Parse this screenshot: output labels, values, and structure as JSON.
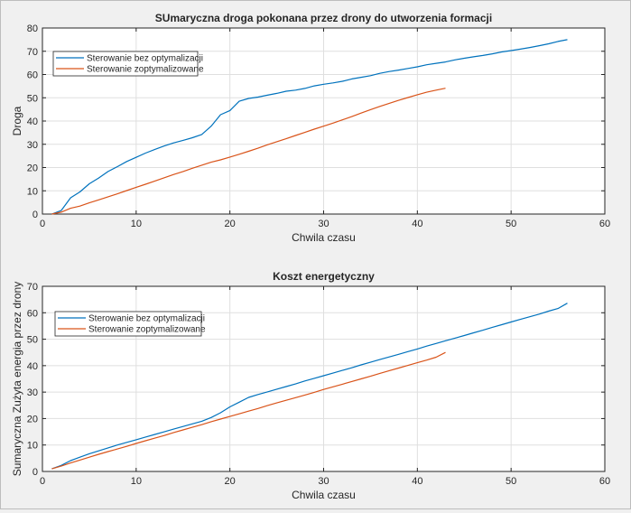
{
  "chart_data": [
    {
      "type": "line",
      "title": "SUmaryczna droga pokonana przez drony do utworzenia formacji",
      "xlabel": "Chwila czasu",
      "ylabel": "Droga",
      "xlim": [
        0,
        60
      ],
      "ylim": [
        0,
        80
      ],
      "xticks": [
        0,
        10,
        20,
        30,
        40,
        50,
        60
      ],
      "yticks": [
        0,
        10,
        20,
        30,
        40,
        50,
        60,
        70,
        80
      ],
      "grid": true,
      "legend_position": "top-left",
      "series": [
        {
          "name": "Sterowanie bez optymalizacji",
          "color": "#0072bd",
          "x": [
            1,
            2,
            3,
            4,
            5,
            6,
            7,
            8,
            9,
            10,
            11,
            12,
            13,
            14,
            15,
            16,
            17,
            18,
            19,
            20,
            21,
            22,
            23,
            24,
            25,
            26,
            27,
            28,
            29,
            30,
            31,
            32,
            33,
            34,
            35,
            36,
            37,
            38,
            39,
            40,
            41,
            42,
            43,
            44,
            45,
            46,
            47,
            48,
            49,
            50,
            51,
            52,
            53,
            54,
            55,
            56
          ],
          "y": [
            0,
            1.5,
            7,
            9.5,
            13,
            15.5,
            18.3,
            20.4,
            22.6,
            24.4,
            26.2,
            27.8,
            29.3,
            30.6,
            31.7,
            32.8,
            34.2,
            37.8,
            42.7,
            44.5,
            48.5,
            49.7,
            50.3,
            51.1,
            51.9,
            52.8,
            53.3,
            54,
            55.1,
            55.8,
            56.4,
            57.1,
            58.1,
            58.8,
            59.5,
            60.5,
            61.3,
            61.9,
            62.6,
            63.3,
            64.2,
            64.8,
            65.4,
            66.3,
            67,
            67.6,
            68.2,
            68.9,
            69.7,
            70.3,
            70.9,
            71.6,
            72.4,
            73.2,
            74.2,
            75
          ]
        },
        {
          "name": "Sterowanie zoptymalizowane",
          "color": "#d95319",
          "x": [
            1,
            2,
            3,
            4,
            5,
            6,
            7,
            8,
            9,
            10,
            11,
            12,
            13,
            14,
            15,
            16,
            17,
            18,
            19,
            20,
            21,
            22,
            23,
            24,
            25,
            26,
            27,
            28,
            29,
            30,
            31,
            32,
            33,
            34,
            35,
            36,
            37,
            38,
            39,
            40,
            41,
            42,
            43
          ],
          "y": [
            0,
            0.8,
            2.5,
            3.4,
            4.8,
            6.1,
            7.4,
            8.7,
            10.1,
            11.5,
            12.8,
            14.2,
            15.6,
            17,
            18.3,
            19.7,
            21,
            22.3,
            23.3,
            24.5,
            25.7,
            27,
            28.3,
            29.8,
            31.1,
            32.4,
            33.8,
            35.1,
            36.5,
            37.8,
            39.1,
            40.5,
            41.9,
            43.4,
            44.9,
            46.3,
            47.6,
            48.9,
            50.1,
            51.3,
            52.4,
            53.3,
            54.1
          ]
        }
      ]
    },
    {
      "type": "line",
      "title": "Koszt energetyczny",
      "xlabel": "Chwila czasu",
      "ylabel": "Sumaryczna Zużyta energia przez drony",
      "xlim": [
        0,
        60
      ],
      "ylim": [
        0,
        70
      ],
      "xticks": [
        0,
        10,
        20,
        30,
        40,
        50,
        60
      ],
      "yticks": [
        0,
        10,
        20,
        30,
        40,
        50,
        60,
        70
      ],
      "grid": true,
      "legend_position": "top-left",
      "series": [
        {
          "name": "Sterowanie bez optymalizacji",
          "color": "#0072bd",
          "x": [
            1,
            2,
            3,
            4,
            5,
            6,
            7,
            8,
            9,
            10,
            11,
            12,
            13,
            14,
            15,
            16,
            17,
            18,
            19,
            20,
            21,
            22,
            23,
            24,
            25,
            26,
            27,
            28,
            29,
            30,
            31,
            32,
            33,
            34,
            35,
            36,
            37,
            38,
            39,
            40,
            41,
            42,
            43,
            44,
            45,
            46,
            47,
            48,
            49,
            50,
            51,
            52,
            53,
            54,
            55,
            56
          ],
          "y": [
            1,
            2.3,
            4.1,
            5.4,
            6.7,
            7.8,
            8.9,
            10,
            11,
            12,
            13,
            14,
            15,
            16,
            17,
            18,
            19,
            20.4,
            22.2,
            24.4,
            26.2,
            28,
            29.1,
            30.1,
            31.1,
            32.1,
            33.1,
            34.2,
            35.2,
            36.2,
            37.2,
            38.2,
            39.2,
            40.3,
            41.3,
            42.3,
            43.3,
            44.3,
            45.3,
            46.3,
            47.4,
            48.4,
            49.4,
            50.4,
            51.4,
            52.4,
            53.4,
            54.5,
            55.5,
            56.5,
            57.5,
            58.5,
            59.5,
            60.6,
            61.6,
            63.6
          ]
        },
        {
          "name": "Sterowanie zoptymalizowane",
          "color": "#d95319",
          "x": [
            1,
            2,
            3,
            4,
            5,
            6,
            7,
            8,
            9,
            10,
            11,
            12,
            13,
            14,
            15,
            16,
            17,
            18,
            19,
            20,
            21,
            22,
            23,
            24,
            25,
            26,
            27,
            28,
            29,
            30,
            31,
            32,
            33,
            34,
            35,
            36,
            37,
            38,
            39,
            40,
            41,
            42,
            43
          ],
          "y": [
            1,
            2,
            3.2,
            4.3,
            5.4,
            6.5,
            7.5,
            8.5,
            9.5,
            10.6,
            11.6,
            12.6,
            13.6,
            14.7,
            15.7,
            16.7,
            17.7,
            18.8,
            19.8,
            20.8,
            21.8,
            22.8,
            23.8,
            24.9,
            25.9,
            26.9,
            27.9,
            28.9,
            29.9,
            31,
            32,
            33,
            34,
            35,
            36,
            37.1,
            38.1,
            39.1,
            40.1,
            41.1,
            42.1,
            43.2,
            45
          ]
        }
      ]
    }
  ]
}
